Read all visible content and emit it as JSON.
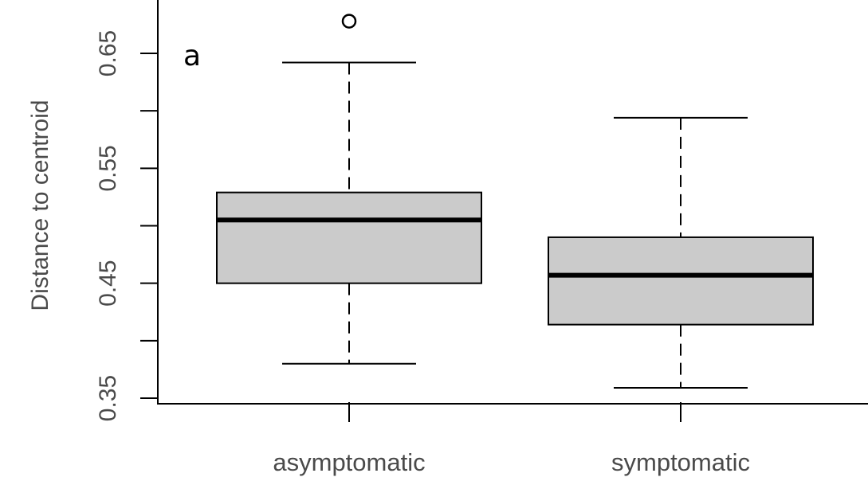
{
  "chart_data": {
    "type": "boxplot",
    "panel_label": "a",
    "ylabel": "Distance to centroid",
    "ylim": [
      0.35,
      0.69
    ],
    "y_ticks": [
      0.35,
      0.4,
      0.45,
      0.5,
      0.55,
      0.6,
      0.65
    ],
    "y_tick_labels": [
      "0.35",
      "",
      "0.45",
      "",
      "0.55",
      "",
      "0.65"
    ],
    "categories": [
      "asymptomatic",
      "symptomatic"
    ],
    "boxes": [
      {
        "name": "asymptomatic",
        "whisker_low": 0.38,
        "q1": 0.45,
        "median": 0.505,
        "q3": 0.529,
        "whisker_high": 0.642,
        "outliers": [
          0.678
        ]
      },
      {
        "name": "symptomatic",
        "whisker_low": 0.359,
        "q1": 0.414,
        "median": 0.457,
        "q3": 0.49,
        "whisker_high": 0.594,
        "outliers": []
      }
    ],
    "colors": {
      "box_fill": "#cbcbcb",
      "stroke": "#000000"
    },
    "grid": false,
    "legend": "none"
  }
}
